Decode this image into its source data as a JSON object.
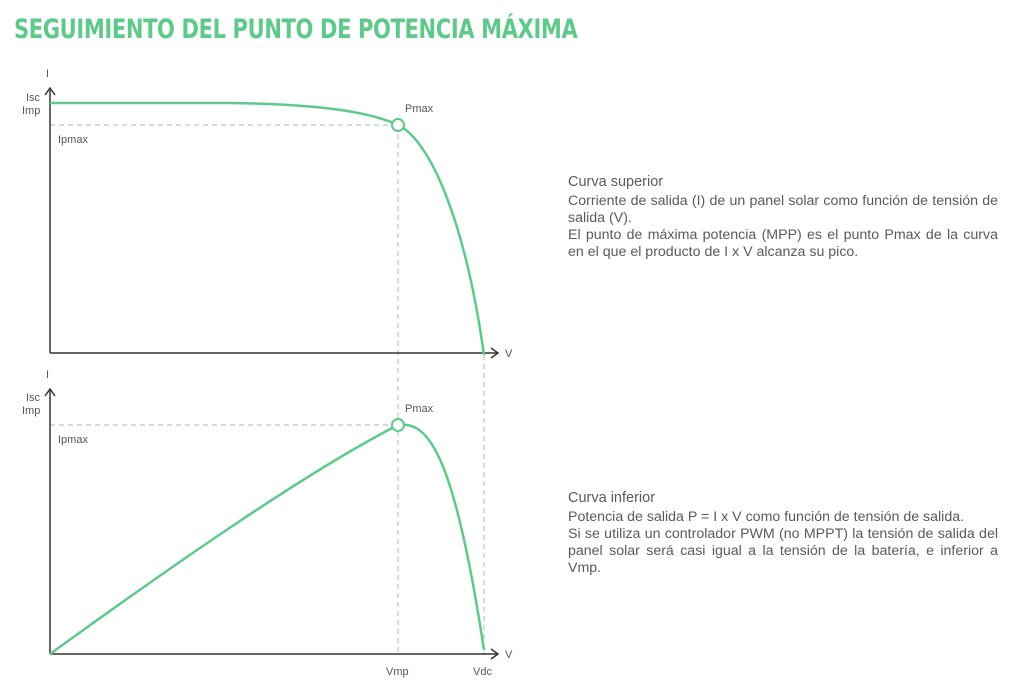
{
  "title": "SEGUIMIENTO DEL PUNTO DE POTENCIA MÁXIMA",
  "colors": {
    "accent": "#5ec98a",
    "axis": "#333333",
    "guide": "#b5b5b5",
    "text": "#555555"
  },
  "top_chart": {
    "y_axis_label": "I",
    "isc_label": "Isc",
    "imp_label": "Imp",
    "ipmax_label": "Ipmax",
    "pmax_label": "Pmax",
    "x_axis_label": "V"
  },
  "bottom_chart": {
    "y_axis_label": "I",
    "isc_label": "Isc",
    "imp_label": "Imp",
    "ipmax_label": "Ipmax",
    "pmax_label": "Pmax",
    "x_axis_label": "V",
    "vmp_label": "Vmp",
    "vdc_label": "Vdc"
  },
  "descriptions": {
    "top": {
      "heading": "Curva superior",
      "lines": [
        "Corriente de salida (I) de un panel solar como función de tensión de salida (V).",
        "El punto de máxima potencia (MPP) es el punto Pmax de la curva en el que el producto de I x V alcanza su pico."
      ]
    },
    "bottom": {
      "heading": "Curva inferior",
      "lines": [
        "Potencia de salida P = I x V como función de tensión de salida.",
        "Si se utiliza un controlador PWM (no MPPT) la tensión de salida del panel solar será casi igual a la tensión de la batería, e inferior a Vmp."
      ]
    }
  }
}
